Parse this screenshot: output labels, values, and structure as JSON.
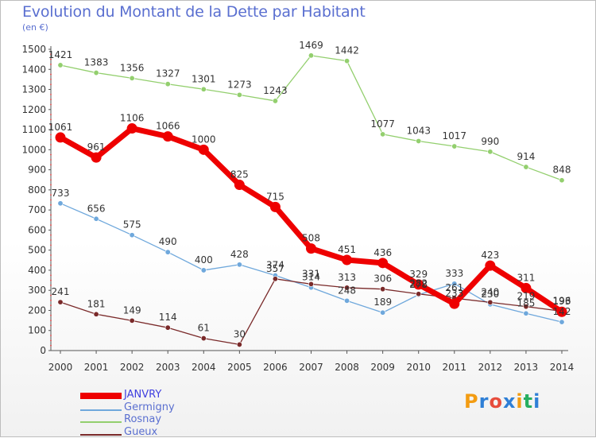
{
  "title": "Evolution du Montant de la Dette par Habitant",
  "unit": "(en €)",
  "logo": {
    "text": "Proxiti",
    "colors": [
      "#f39c12",
      "#2f7fd6",
      "#e74c3c",
      "#2f7fd6",
      "#f39c12",
      "#27ae60",
      "#2f7fd6"
    ]
  },
  "chart_data": {
    "type": "line",
    "title": "Evolution du Montant de la Dette par Habitant",
    "ylabel": "(en €)",
    "ylim": [
      0,
      1500
    ],
    "yticks": [
      0,
      100,
      200,
      300,
      400,
      500,
      600,
      700,
      800,
      900,
      1000,
      1100,
      1200,
      1300,
      1400,
      1500
    ],
    "grid": false,
    "legend": "bottom-left",
    "x": [
      "2000",
      "2001",
      "2002",
      "2003",
      "2004",
      "2005",
      "2006",
      "2007",
      "2008",
      "2009",
      "2010",
      "2011",
      "2012",
      "2013",
      "2014"
    ],
    "series": [
      {
        "name": "JANVRY",
        "color": "#ee0000",
        "values": [
          1061,
          961,
          1106,
          1066,
          1000,
          825,
          715,
          508,
          451,
          436,
          329,
          233,
          423,
          311,
          193
        ]
      },
      {
        "name": "Germigny",
        "color": "#6fa8dc",
        "values": [
          733,
          656,
          575,
          490,
          400,
          428,
          374,
          314,
          248,
          189,
          278,
          333,
          230,
          185,
          142
        ]
      },
      {
        "name": "Rosnay",
        "color": "#93cf6e",
        "values": [
          1421,
          1383,
          1356,
          1327,
          1301,
          1273,
          1243,
          1469,
          1442,
          1077,
          1043,
          1017,
          990,
          914,
          848
        ]
      },
      {
        "name": "Gueux",
        "color": "#7a2a2a",
        "values": [
          241,
          181,
          149,
          114,
          61,
          30,
          357,
          331,
          313,
          306,
          282,
          261,
          240,
          219,
          196
        ]
      }
    ]
  }
}
